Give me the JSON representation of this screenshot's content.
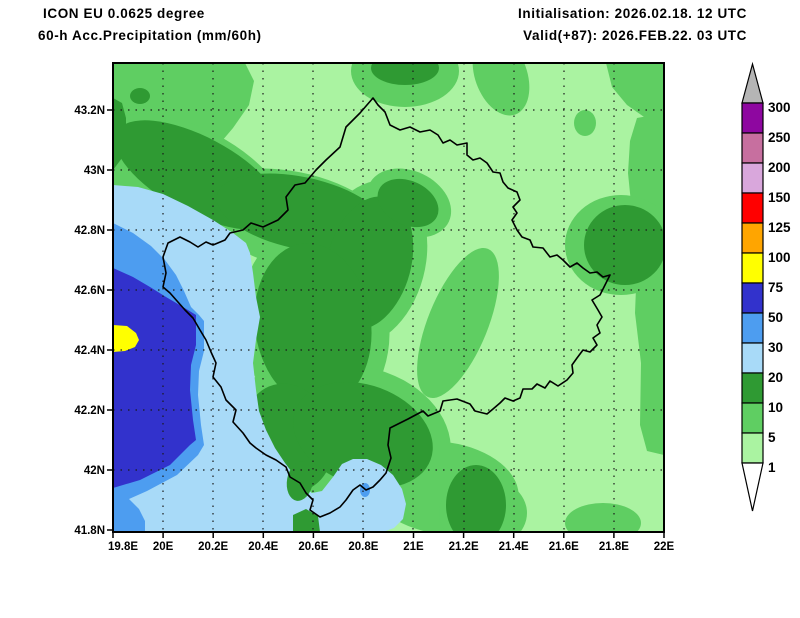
{
  "header": {
    "model": "ICON EU 0.0625 degree",
    "product": "60-h Acc.Precipitation (mm/60h)",
    "initialisation": "Initialisation: 2026.02.18. 12 UTC",
    "valid": "Valid(+87): 2026.FEB.22. 03 UTC"
  },
  "map": {
    "x_tick_labels": [
      "19.8E",
      "20E",
      "20.2E",
      "20.4E",
      "20.6E",
      "20.8E",
      "21E",
      "21.2E",
      "21.4E",
      "21.6E",
      "21.8E",
      "22E"
    ],
    "y_tick_labels": [
      "43.2N",
      "43N",
      "42.8N",
      "42.6N",
      "42.4N",
      "42.2N",
      "42N",
      "41.8N"
    ]
  },
  "colorbar": {
    "labels": [
      "300",
      "250",
      "200",
      "150",
      "125",
      "100",
      "75",
      "50",
      "30",
      "20",
      "10",
      "5",
      "1"
    ],
    "segment_colors": [
      "#8E07A0",
      "#C76F9F",
      "#D9A7DC",
      "#FF0000",
      "#FFA500",
      "#FFFF00",
      "#3232CC",
      "#4D9DF0",
      "#A8DAF8",
      "#2F9A33",
      "#5FCE62",
      "#AAF3A1"
    ],
    "over_color": "#B5B5B5",
    "under_color": "#FFFFFF"
  },
  "chart_data": {
    "type": "contour_map",
    "title": "60-h Acc.Precipitation (mm/60h)",
    "model": "ICON EU 0.0625 degree",
    "initialisation": "2026.02.18. 12 UTC",
    "valid": "2026.FEB.22. 03 UTC",
    "lead": "+87",
    "x_axis": {
      "ticks": [
        "19.8E",
        "20E",
        "20.2E",
        "20.4E",
        "20.6E",
        "20.8E",
        "21E",
        "21.2E",
        "21.4E",
        "21.6E",
        "21.8E",
        "22E"
      ],
      "range_deg_east": [
        19.8,
        22.0
      ]
    },
    "y_axis": {
      "ticks": [
        "43.2N",
        "43N",
        "42.8N",
        "42.6N",
        "42.4N",
        "42.2N",
        "42N",
        "41.8N"
      ],
      "range_deg_north": [
        41.8,
        43.36
      ]
    },
    "levels_mm": [
      1,
      5,
      10,
      20,
      30,
      50,
      75,
      100,
      125,
      150,
      200,
      250,
      300
    ],
    "level_colors": {
      "1-5": "#AAF3A1",
      "5-10": "#5FCE62",
      "10-20": "#2F9A33",
      "20-30": "#A8DAF8",
      "30-50": "#4D9DF0",
      "50-75": "#3232CC",
      "75-100": "#FFFF00",
      "100-125": "#FFA500",
      "125-150": "#FF0000",
      "150-200": "#D9A7DC",
      "200-250": "#C76F9F",
      "250-300": "#8E07A0",
      "over300": "#B5B5B5",
      "under1": "#FFFFFF"
    },
    "grid": "dotted 0.2-degree graticule",
    "legend_position": "right vertical colorbar",
    "features": [
      "Yellow 75-100 mm maximum patch at western map edge near 19.85E 42.42N",
      "Dark blue 50-75 mm area along western edge between about 42.15N and 42.65N",
      "Blue 20-50 mm band covering the western quarter and the south-west lowlands",
      "Dark green 10-20 mm band from the north-west across the centre to the south",
      "Light green 1-5 mm over most of the eastern half",
      "Smaller dark green 10-20 mm cells at top centre, east of centre and at the bottom",
      "Black national border outline crossing the centre of the map"
    ]
  }
}
